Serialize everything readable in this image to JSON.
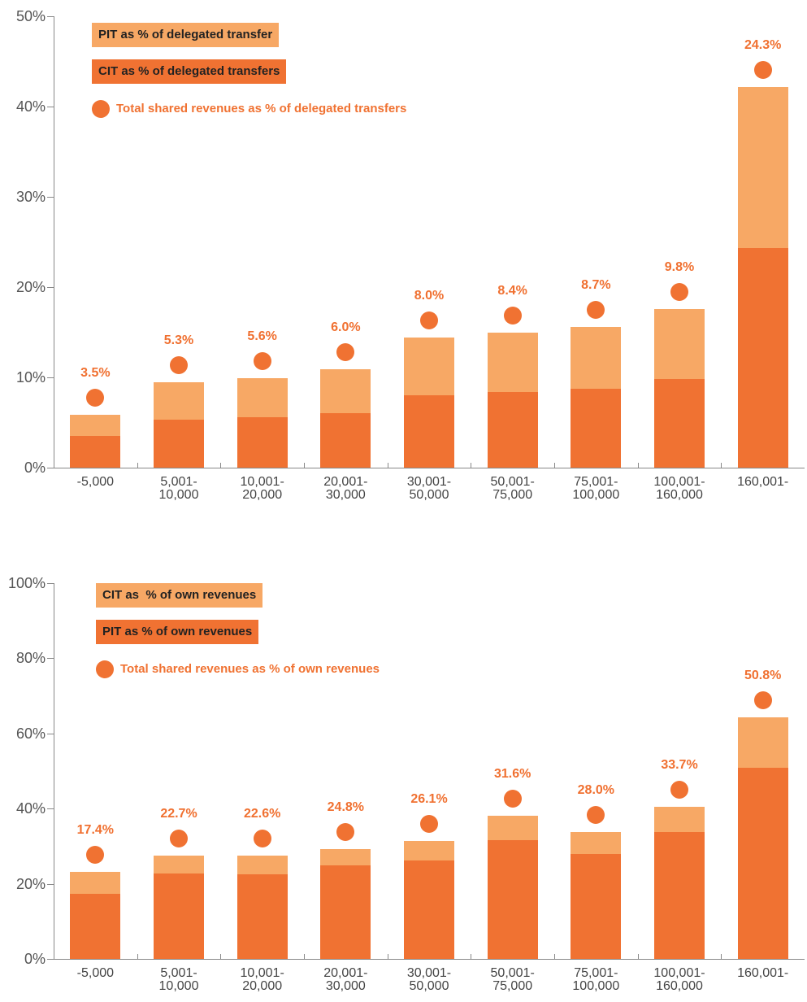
{
  "chart_data": [
    {
      "type": "bar",
      "stacked": true,
      "categories": [
        "-5,000",
        "5,001-\n10,000",
        "10,001-\n20,000",
        "20,001-\n30,000",
        "30,001-\n50,000",
        "50,001-\n75,000",
        "75,001-\n100,000",
        "100,001-\n160,000",
        "160,001-"
      ],
      "series": [
        {
          "name": "PIT as % of delegated transfer",
          "color": "#f7a865",
          "values": [
            2.4,
            4.2,
            4.3,
            4.9,
            6.4,
            6.6,
            6.9,
            7.8,
            17.9
          ]
        },
        {
          "name": "CIT as % of delegated transfers",
          "color": "#f07232",
          "values": [
            3.5,
            5.3,
            5.6,
            6.0,
            8.0,
            8.4,
            8.7,
            9.8,
            24.3
          ]
        }
      ],
      "markers": {
        "name": "Total shared revenues as % of delegated transfers",
        "color": "#f07232",
        "values": [
          3.5,
          5.3,
          5.6,
          6.0,
          8.0,
          8.4,
          8.7,
          9.8,
          24.3
        ],
        "value_labels": [
          "3.5%",
          "5.3%",
          "5.6%",
          "6.0%",
          "8.0%",
          "8.4%",
          "8.7%",
          "9.8%",
          "24.3%"
        ]
      },
      "ylim": [
        0,
        50
      ],
      "yticks": [
        {
          "value": 0,
          "label": "0%"
        },
        {
          "value": 10,
          "label": "10%"
        },
        {
          "value": 20,
          "label": "20%"
        },
        {
          "value": 30,
          "label": "30%"
        },
        {
          "value": 40,
          "label": "40%"
        },
        {
          "value": 50,
          "label": "50%"
        }
      ]
    },
    {
      "type": "bar",
      "stacked": true,
      "categories": [
        "-5,000",
        "5,001-\n10,000",
        "10,001-\n20,000",
        "20,001-\n30,000",
        "30,001-\n50,000",
        "50,001-\n75,000",
        "75,001-\n100,000",
        "100,001-\n160,000",
        "160,001-"
      ],
      "series": [
        {
          "name": "CIT as  % of own revenues",
          "color": "#f7a865",
          "values": [
            5.8,
            4.8,
            4.9,
            4.4,
            5.3,
            6.5,
            5.8,
            6.8,
            13.5
          ]
        },
        {
          "name": "PIT as % of own revenues",
          "color": "#f07232",
          "values": [
            17.4,
            22.7,
            22.6,
            24.8,
            26.1,
            31.6,
            28.0,
            33.7,
            50.8
          ]
        }
      ],
      "markers": {
        "name": "Total shared revenues as % of own revenues",
        "color": "#f07232",
        "values": [
          17.4,
          22.7,
          22.6,
          24.8,
          26.1,
          31.6,
          28.0,
          33.7,
          50.8
        ],
        "value_labels": [
          "17.4%",
          "22.7%",
          "22.6%",
          "24.8%",
          "26.1%",
          "31.6%",
          "28.0%",
          "33.7%",
          "50.8%"
        ]
      },
      "ylim": [
        0,
        100
      ],
      "yticks": [
        {
          "value": 0,
          "label": "0%"
        },
        {
          "value": 20,
          "label": "20%"
        },
        {
          "value": 40,
          "label": "40%"
        },
        {
          "value": 60,
          "label": "60%"
        },
        {
          "value": 80,
          "label": "80%"
        },
        {
          "value": 100,
          "label": "100%"
        }
      ]
    }
  ]
}
